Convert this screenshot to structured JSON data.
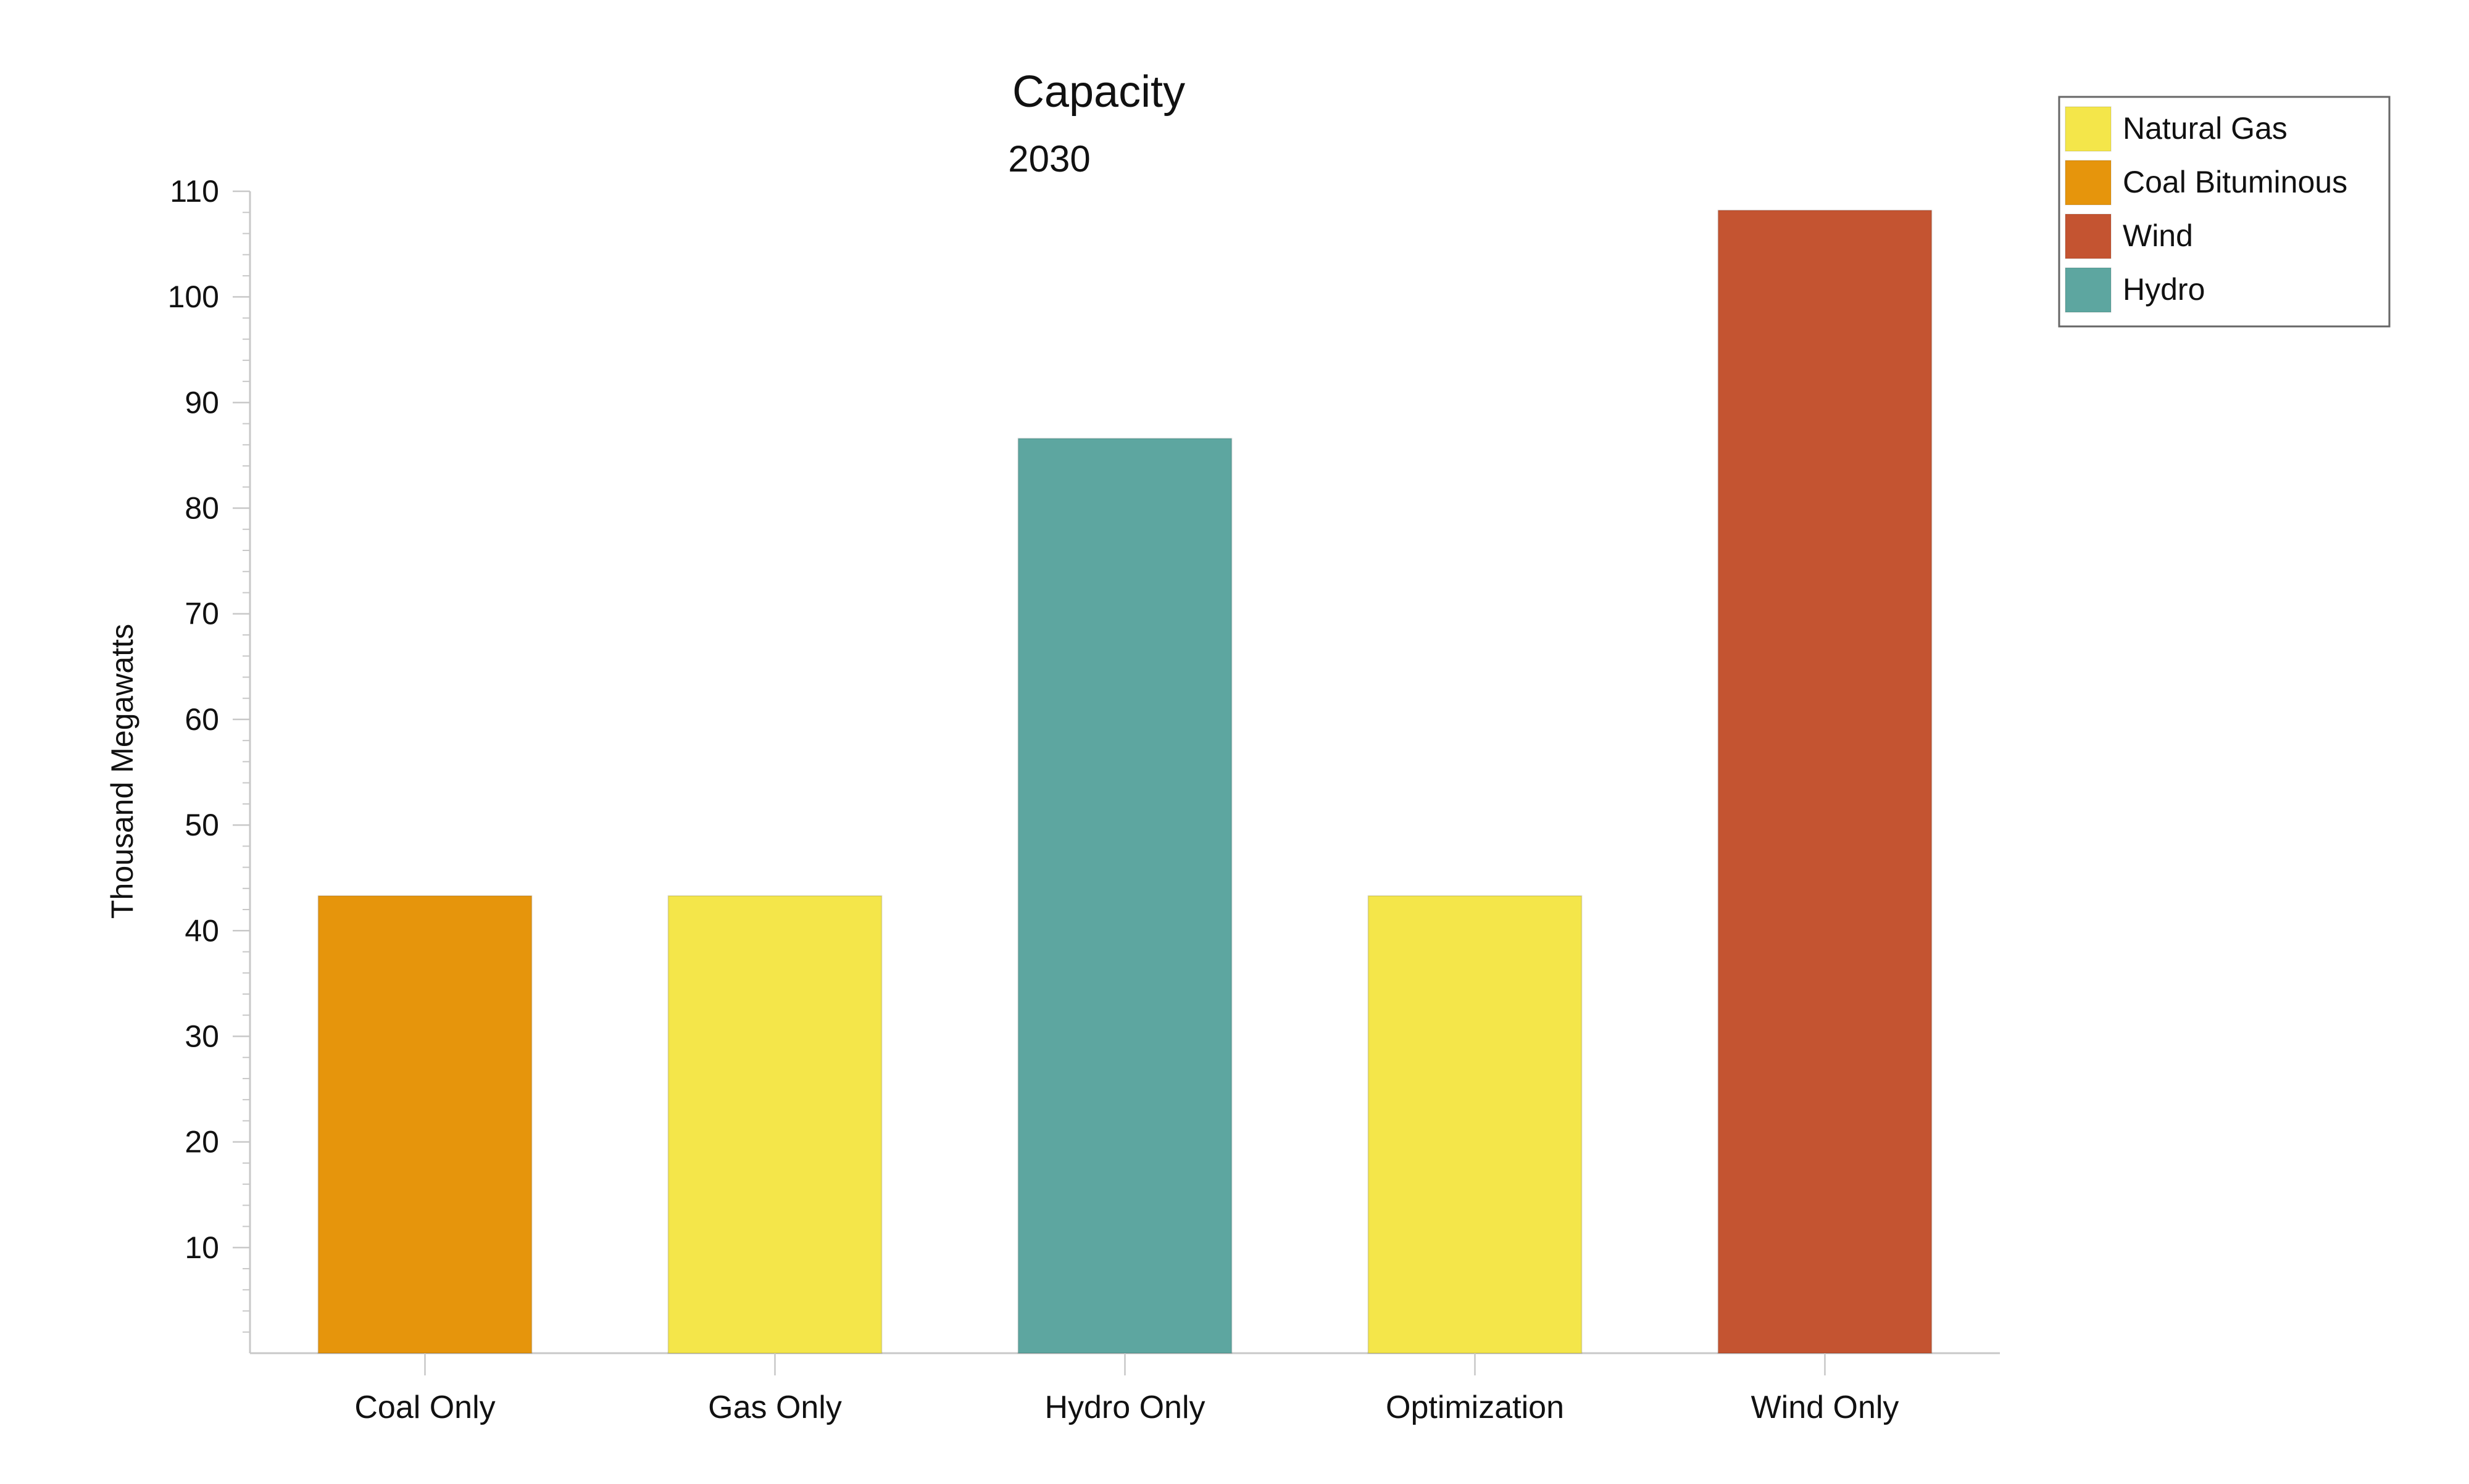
{
  "chart_data": {
    "type": "bar",
    "title": "Capacity",
    "subtitle": "2030",
    "xlabel": "",
    "ylabel": "Thousand Megawatts",
    "categories": [
      "Coal Only",
      "Gas Only",
      "Hydro Only",
      "Optimization",
      "Wind Only"
    ],
    "values": [
      43.3,
      43.3,
      86.6,
      43.3,
      108.2
    ],
    "bar_series": [
      "Coal Bituminous",
      "Natural Gas",
      "Hydro",
      "Natural Gas",
      "Wind"
    ],
    "ylim": [
      0,
      110
    ],
    "yticks": [
      10,
      20,
      30,
      40,
      50,
      60,
      70,
      80,
      90,
      100,
      110
    ],
    "grid": false,
    "legend_position": "top-right",
    "series": [
      {
        "name": "Natural Gas",
        "color": "#f4e64a"
      },
      {
        "name": "Coal Bituminous",
        "color": "#e6950c"
      },
      {
        "name": "Wind",
        "color": "#c45431"
      },
      {
        "name": "Hydro",
        "color": "#5da6a0"
      }
    ]
  }
}
